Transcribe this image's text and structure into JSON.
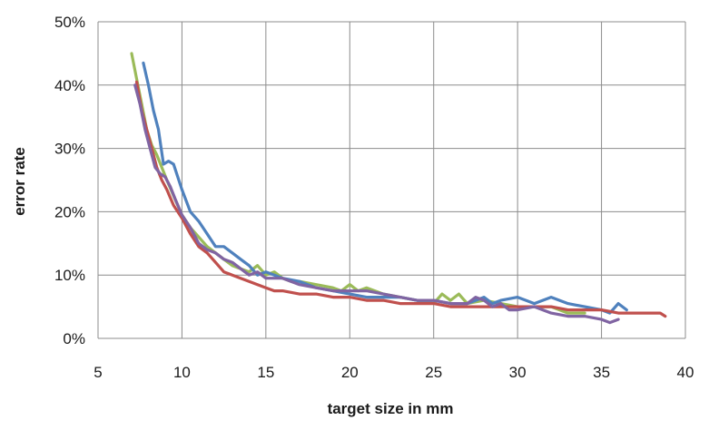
{
  "chart_data": {
    "type": "line",
    "xlabel": "target size in mm",
    "ylabel": "error rate",
    "xlim": [
      5,
      40
    ],
    "ylim": [
      0,
      50
    ],
    "x_ticks": [
      "5",
      "10",
      "15",
      "20",
      "25",
      "30",
      "35",
      "40"
    ],
    "y_ticks": [
      "0%",
      "10%",
      "20%",
      "30%",
      "40%",
      "50%"
    ],
    "grid": true,
    "legend": "none",
    "series": [
      {
        "color": "#9bbb59",
        "x": [
          7.0,
          7.3,
          7.6,
          7.9,
          8.2,
          8.5,
          8.8,
          9.1,
          9.5,
          10.0,
          10.5,
          11.0,
          11.5,
          12.0,
          12.5,
          13.0,
          13.5,
          14.0,
          14.5,
          15.0,
          15.5,
          16.0,
          16.5,
          17.0,
          18.0,
          19.0,
          19.5,
          20.0,
          20.5,
          21.0,
          22.0,
          23.0,
          24.0,
          25.0,
          25.5,
          26.0,
          26.5,
          27.0,
          28.0,
          29.0,
          30.0,
          31.0,
          32.0,
          33.0,
          34.0
        ],
        "y": [
          45.0,
          41.0,
          37.0,
          33.0,
          30.5,
          29.0,
          27.0,
          25.0,
          22.5,
          19.5,
          17.5,
          16.0,
          14.5,
          13.5,
          12.5,
          11.5,
          11.0,
          10.5,
          11.5,
          10.0,
          10.5,
          9.5,
          9.0,
          9.0,
          8.5,
          8.0,
          7.5,
          8.5,
          7.5,
          8.0,
          7.0,
          6.5,
          6.0,
          5.5,
          7.0,
          6.0,
          7.0,
          5.5,
          6.0,
          5.5,
          5.0,
          5.0,
          5.0,
          4.0,
          4.0
        ]
      },
      {
        "color": "#4f81bd",
        "x": [
          7.7,
          8.0,
          8.3,
          8.6,
          8.9,
          9.2,
          9.5,
          10.0,
          10.5,
          11.0,
          11.5,
          12.0,
          12.5,
          13.0,
          13.5,
          14.0,
          14.5,
          15.0,
          15.5,
          16.0,
          17.0,
          18.0,
          19.0,
          20.0,
          21.0,
          22.0,
          23.0,
          24.0,
          25.0,
          26.0,
          27.0,
          28.0,
          28.5,
          29.0,
          30.0,
          31.0,
          32.0,
          33.0,
          34.0,
          35.0,
          35.5,
          36.0,
          36.5
        ],
        "y": [
          43.5,
          40.0,
          36.0,
          33.0,
          27.5,
          28.0,
          27.5,
          23.5,
          20.0,
          18.5,
          16.5,
          14.5,
          14.5,
          13.5,
          12.5,
          11.5,
          10.0,
          10.5,
          10.0,
          9.5,
          9.0,
          8.0,
          7.5,
          7.0,
          6.5,
          6.5,
          6.5,
          6.0,
          6.0,
          5.5,
          5.5,
          6.5,
          5.5,
          6.0,
          6.5,
          5.5,
          6.5,
          5.5,
          5.0,
          4.5,
          4.0,
          5.5,
          4.5
        ]
      },
      {
        "color": "#c0504d",
        "x": [
          7.3,
          7.6,
          7.9,
          8.2,
          8.5,
          8.8,
          9.1,
          9.5,
          10.0,
          10.5,
          11.0,
          11.5,
          12.0,
          12.5,
          13.0,
          13.5,
          14.0,
          14.5,
          15.0,
          15.5,
          16.0,
          17.0,
          18.0,
          19.0,
          20.0,
          21.0,
          22.0,
          23.0,
          24.0,
          25.0,
          26.0,
          27.0,
          28.0,
          29.0,
          30.0,
          31.0,
          32.0,
          33.0,
          34.0,
          35.0,
          36.0,
          37.0,
          38.0,
          38.5,
          38.8
        ],
        "y": [
          40.5,
          36.0,
          33.0,
          30.0,
          27.0,
          25.0,
          23.5,
          21.0,
          19.0,
          16.5,
          14.5,
          13.5,
          12.0,
          10.5,
          10.0,
          9.5,
          9.0,
          8.5,
          8.0,
          7.5,
          7.5,
          7.0,
          7.0,
          6.5,
          6.5,
          6.0,
          6.0,
          5.5,
          5.5,
          5.5,
          5.0,
          5.0,
          5.0,
          5.0,
          5.0,
          5.0,
          5.0,
          4.5,
          4.5,
          4.5,
          4.0,
          4.0,
          4.0,
          4.0,
          3.5
        ]
      },
      {
        "color": "#8064a2",
        "x": [
          7.2,
          7.5,
          7.8,
          8.1,
          8.4,
          8.7,
          9.0,
          9.3,
          9.6,
          10.0,
          10.5,
          11.0,
          11.5,
          12.0,
          12.5,
          13.0,
          13.5,
          14.0,
          14.5,
          15.0,
          15.5,
          16.0,
          17.0,
          18.0,
          19.0,
          20.0,
          21.0,
          22.0,
          23.0,
          24.0,
          25.0,
          26.0,
          27.0,
          27.5,
          28.0,
          28.5,
          29.0,
          29.5,
          30.0,
          31.0,
          32.0,
          33.0,
          34.0,
          35.0,
          35.5,
          36.0
        ],
        "y": [
          40.0,
          37.0,
          33.0,
          30.0,
          27.0,
          26.0,
          25.5,
          24.0,
          22.0,
          19.5,
          17.5,
          15.0,
          14.0,
          13.5,
          12.5,
          12.0,
          11.0,
          10.0,
          10.5,
          9.5,
          9.5,
          9.5,
          8.5,
          8.0,
          7.5,
          7.5,
          7.5,
          7.0,
          6.5,
          6.0,
          6.0,
          5.5,
          5.5,
          6.5,
          6.0,
          5.0,
          5.5,
          4.5,
          4.5,
          5.0,
          4.0,
          3.5,
          3.5,
          3.0,
          2.5,
          3.0
        ]
      }
    ]
  }
}
